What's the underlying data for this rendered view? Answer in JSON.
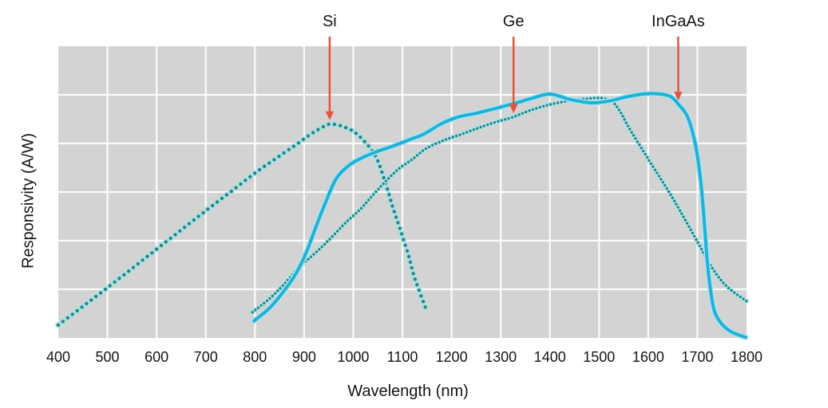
{
  "page": {
    "background": "#ffffff",
    "text_color": "#141414"
  },
  "chart_data": {
    "type": "line",
    "title": "",
    "xlabel": "Wavelength (nm)",
    "ylabel": "Responsivity (A/W)",
    "x_axis": {
      "min": 400,
      "max": 1800,
      "tick_interval": 100,
      "tick_labels": [
        "400",
        "500",
        "600",
        "700",
        "800",
        "900",
        "1000",
        "1100",
        "1200",
        "1300",
        "1400",
        "1500",
        "1600",
        "1700",
        "1800"
      ]
    },
    "y_axis": {
      "tick_labels": [],
      "note": "unlabeled axis; values normalized 0-1 of plot height",
      "grid_rows": 6
    },
    "grid": true,
    "legend": "none (labels via arrows)",
    "plot_bg": "#d3d3d3",
    "grid_color": "#ffffff",
    "annotation_arrow_color": "#e2543f",
    "series": [
      {
        "name": "Si",
        "style": "dotted",
        "color_core": "#31798d",
        "color_halo": "#9fe4dc",
        "points": [
          [
            400,
            0.044
          ],
          [
            450,
            0.108
          ],
          [
            500,
            0.172
          ],
          [
            550,
            0.238
          ],
          [
            600,
            0.304
          ],
          [
            650,
            0.37
          ],
          [
            700,
            0.436
          ],
          [
            750,
            0.5
          ],
          [
            800,
            0.565
          ],
          [
            840,
            0.612
          ],
          [
            880,
            0.658
          ],
          [
            915,
            0.7
          ],
          [
            940,
            0.725
          ],
          [
            955,
            0.733
          ],
          [
            980,
            0.724
          ],
          [
            1008,
            0.698
          ],
          [
            1043,
            0.63
          ],
          [
            1064,
            0.54
          ],
          [
            1080,
            0.45
          ],
          [
            1096,
            0.37
          ],
          [
            1112,
            0.285
          ],
          [
            1125,
            0.205
          ],
          [
            1150,
            0.09
          ]
        ]
      },
      {
        "name": "Ge",
        "style": "dotted-fine",
        "color_core": "#2f7d8e",
        "color_halo": "#a5e6e0",
        "points": [
          [
            795,
            0.088
          ],
          [
            830,
            0.135
          ],
          [
            860,
            0.185
          ],
          [
            890,
            0.243
          ],
          [
            910,
            0.272
          ],
          [
            935,
            0.31
          ],
          [
            960,
            0.352
          ],
          [
            985,
            0.396
          ],
          [
            1015,
            0.442
          ],
          [
            1040,
            0.49
          ],
          [
            1065,
            0.535
          ],
          [
            1093,
            0.58
          ],
          [
            1120,
            0.612
          ],
          [
            1147,
            0.648
          ],
          [
            1185,
            0.678
          ],
          [
            1220,
            0.698
          ],
          [
            1255,
            0.72
          ],
          [
            1290,
            0.74
          ],
          [
            1325,
            0.757
          ],
          [
            1360,
            0.78
          ],
          [
            1400,
            0.8
          ],
          [
            1440,
            0.813
          ],
          [
            1475,
            0.82
          ],
          [
            1505,
            0.822
          ],
          [
            1528,
            0.808
          ],
          [
            1545,
            0.77
          ],
          [
            1560,
            0.723
          ],
          [
            1600,
            0.613
          ],
          [
            1635,
            0.52
          ],
          [
            1665,
            0.435
          ],
          [
            1700,
            0.33
          ],
          [
            1730,
            0.24
          ],
          [
            1760,
            0.176
          ],
          [
            1800,
            0.126
          ]
        ]
      },
      {
        "name": "InGaAs",
        "style": "solid",
        "color_core": "#1fb1d6",
        "color_halo": "#aee4f0",
        "points": [
          [
            798,
            0.058
          ],
          [
            830,
            0.103
          ],
          [
            860,
            0.163
          ],
          [
            885,
            0.225
          ],
          [
            905,
            0.295
          ],
          [
            925,
            0.385
          ],
          [
            945,
            0.47
          ],
          [
            965,
            0.545
          ],
          [
            990,
            0.59
          ],
          [
            1015,
            0.615
          ],
          [
            1050,
            0.64
          ],
          [
            1080,
            0.657
          ],
          [
            1115,
            0.68
          ],
          [
            1145,
            0.7
          ],
          [
            1180,
            0.735
          ],
          [
            1215,
            0.758
          ],
          [
            1250,
            0.77
          ],
          [
            1290,
            0.787
          ],
          [
            1330,
            0.805
          ],
          [
            1365,
            0.822
          ],
          [
            1400,
            0.836
          ],
          [
            1440,
            0.818
          ],
          [
            1483,
            0.806
          ],
          [
            1520,
            0.812
          ],
          [
            1555,
            0.826
          ],
          [
            1590,
            0.836
          ],
          [
            1620,
            0.837
          ],
          [
            1645,
            0.828
          ],
          [
            1662,
            0.8
          ],
          [
            1680,
            0.758
          ],
          [
            1695,
            0.67
          ],
          [
            1706,
            0.55
          ],
          [
            1714,
            0.4
          ],
          [
            1720,
            0.265
          ],
          [
            1727,
            0.16
          ],
          [
            1735,
            0.09
          ],
          [
            1750,
            0.047
          ],
          [
            1770,
            0.02
          ],
          [
            1798,
            0.002
          ]
        ]
      }
    ],
    "annotations": [
      {
        "label": "Si",
        "x_nm": 952,
        "target_value": 0.733
      },
      {
        "label": "Ge",
        "x_nm": 1326,
        "target_value": 0.757
      },
      {
        "label": "InGaAs",
        "x_nm": 1661,
        "target_value": 0.8
      }
    ]
  }
}
